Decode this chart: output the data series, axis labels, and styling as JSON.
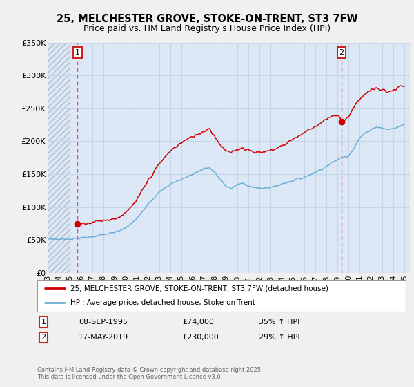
{
  "title": "25, MELCHESTER GROVE, STOKE-ON-TRENT, ST3 7FW",
  "subtitle": "Price paid vs. HM Land Registry's House Price Index (HPI)",
  "ylim": [
    0,
    350000
  ],
  "yticks": [
    0,
    50000,
    100000,
    150000,
    200000,
    250000,
    300000,
    350000
  ],
  "ytick_labels": [
    "£0",
    "£50K",
    "£100K",
    "£150K",
    "£200K",
    "£250K",
    "£300K",
    "£350K"
  ],
  "background_color": "#f0f0f0",
  "plot_bg_color": "#dce8f5",
  "hatch_color": "#b0b8c8",
  "grid_color": "#c5d5e8",
  "hpi_color": "#6aaed6",
  "price_color": "#cc0000",
  "marker1_date": 1995.69,
  "marker1_price": 74000,
  "marker1_label": "1",
  "marker2_date": 2019.38,
  "marker2_price": 230000,
  "marker2_label": "2",
  "legend_line1": "25, MELCHESTER GROVE, STOKE-ON-TRENT, ST3 7FW (detached house)",
  "legend_line2": "HPI: Average price, detached house, Stoke-on-Trent",
  "footer": "Contains HM Land Registry data © Crown copyright and database right 2025.\nThis data is licensed under the Open Government Licence v3.0.",
  "xmin": 1993.0,
  "xmax": 2025.5
}
